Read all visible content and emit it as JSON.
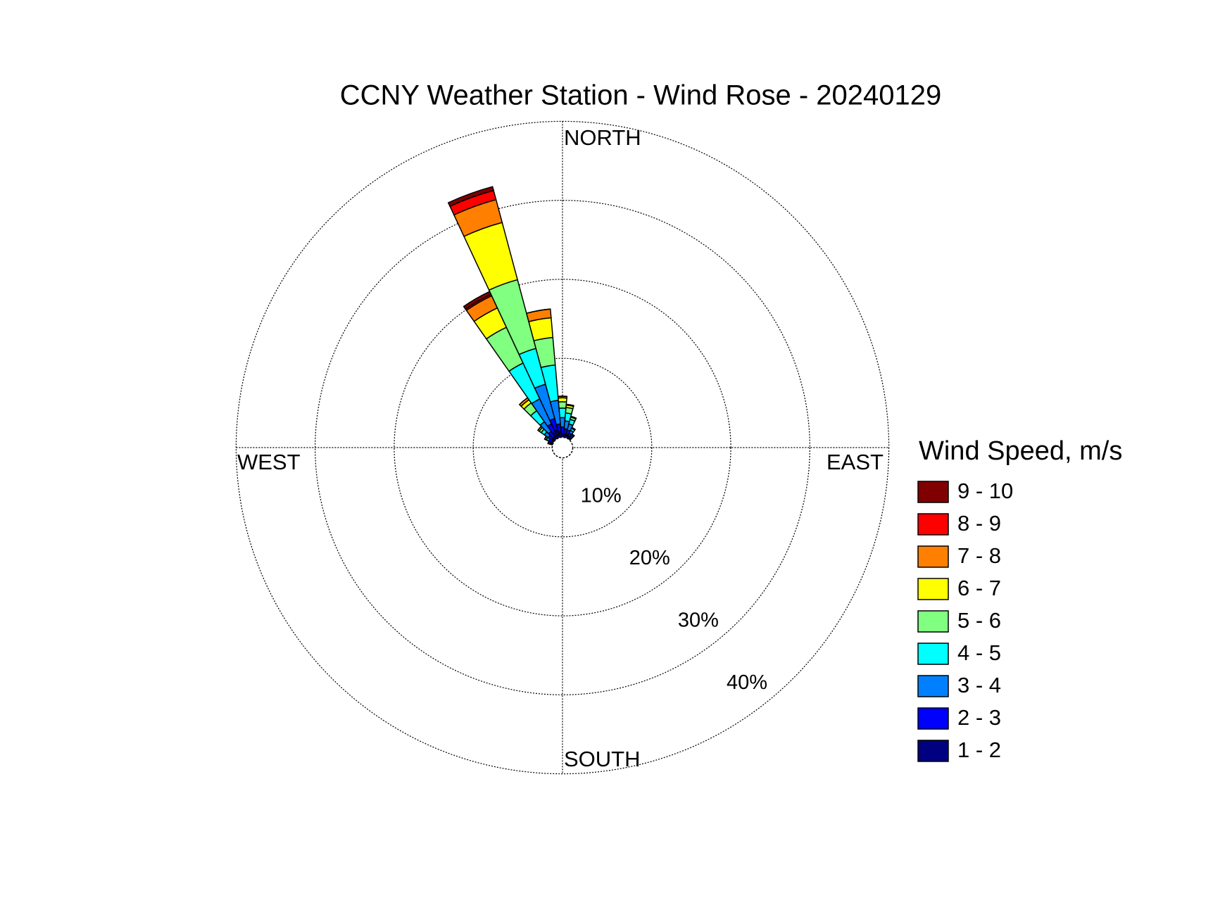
{
  "chart_data": {
    "type": "windrose",
    "title": "CCNY Weather Station - Wind Rose - 20240129",
    "direction_labels": [
      "NORTH",
      "EAST",
      "SOUTH",
      "WEST"
    ],
    "x": [
      290,
      300,
      310,
      320,
      330,
      340,
      350,
      0,
      10,
      20,
      30,
      40
    ],
    "rlim": [
      0,
      40
    ],
    "rticks": [
      {
        "value": 10,
        "label": "10%"
      },
      {
        "value": 20,
        "label": "20%"
      },
      {
        "value": 30,
        "label": "30%"
      },
      {
        "value": 40,
        "label": "40%"
      }
    ],
    "grid": true,
    "legend_title": "Wind Speed, m/s",
    "legend": "right",
    "series": [
      {
        "name": "1 - 2",
        "color": "#000080",
        "values": [
          0.2,
          0.3,
          0.4,
          0.4,
          0.8,
          1.0,
          0.7,
          0.5,
          0.4,
          0.4,
          0.3,
          0.2
        ]
      },
      {
        "name": "2 - 3",
        "color": "#0000ff",
        "values": [
          0.2,
          0.3,
          0.5,
          0.8,
          1.2,
          1.5,
          1.0,
          0.8,
          0.7,
          0.6,
          0.4,
          0.3
        ]
      },
      {
        "name": "3 - 4",
        "color": "#0080ff",
        "values": [
          0.2,
          0.4,
          0.6,
          1.5,
          3.5,
          4.5,
          3.0,
          1.2,
          1.0,
          0.8,
          0.4,
          0.2
        ]
      },
      {
        "name": "4 - 5",
        "color": "#00ffff",
        "values": [
          0,
          0.2,
          0.5,
          1.7,
          5.0,
          4.7,
          4.5,
          1.2,
          1.0,
          0.6,
          0.3,
          0.1
        ]
      },
      {
        "name": "5 - 6",
        "color": "#80ff80",
        "values": [
          0,
          0,
          0.3,
          1.2,
          5.0,
          9.0,
          3.5,
          0.8,
          0.7,
          0.3,
          0.1,
          0
        ]
      },
      {
        "name": "6 - 7",
        "color": "#ffff00",
        "values": [
          0,
          0,
          0.2,
          0.5,
          2.7,
          7.5,
          2.5,
          0.5,
          0.3,
          0.1,
          0,
          0
        ]
      },
      {
        "name": "7 - 8",
        "color": "#ff8000",
        "values": [
          0,
          0,
          0,
          0.3,
          1.7,
          3.0,
          1.1,
          0.2,
          0.1,
          0,
          0,
          0
        ]
      },
      {
        "name": "8 - 9",
        "color": "#ff0000",
        "values": [
          0,
          0,
          0,
          0,
          0.2,
          1.2,
          0,
          0,
          0,
          0,
          0,
          0
        ]
      },
      {
        "name": "9 - 10",
        "color": "#800000",
        "values": [
          0,
          0,
          0,
          0,
          0.4,
          0.5,
          0,
          0,
          0,
          0,
          0,
          0
        ]
      }
    ]
  }
}
